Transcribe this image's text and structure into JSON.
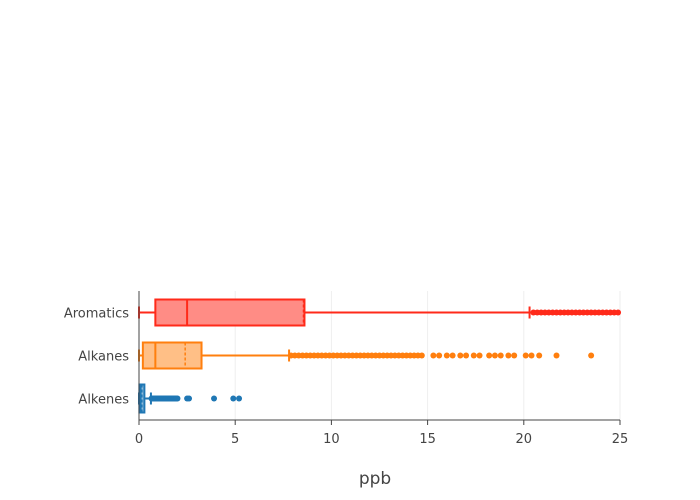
{
  "chart_data": {
    "type": "box",
    "orientation": "horizontal",
    "xlabel": "ppb",
    "ylabel": "",
    "xlim": [
      0,
      25
    ],
    "xticks": [
      0,
      5,
      10,
      15,
      20,
      25
    ],
    "grid": "vertical",
    "legend": "none",
    "series": [
      {
        "category": "Alkenes",
        "color": "#1f77b4",
        "min": 0,
        "q1": 0.02,
        "median": 0.08,
        "mean": 0.15,
        "q3": 0.28,
        "whisker_low": 0,
        "whisker_high": 0.62,
        "outliers": [
          0.65,
          0.7,
          0.75,
          0.8,
          0.85,
          0.9,
          0.95,
          1.0,
          1.05,
          1.1,
          1.15,
          1.2,
          1.25,
          1.3,
          1.35,
          1.4,
          1.45,
          1.5,
          1.55,
          1.6,
          1.65,
          1.7,
          1.75,
          1.8,
          1.85,
          1.9,
          1.95,
          2.0,
          2.5,
          2.6,
          3.9,
          4.9,
          5.2
        ]
      },
      {
        "category": "Alkanes",
        "color": "#ff7f0e",
        "min": 0,
        "q1": 0.2,
        "median": 0.85,
        "mean": 2.4,
        "q3": 3.25,
        "whisker_low": 0,
        "whisker_high": 7.8,
        "outliers": [
          7.9,
          8.1,
          8.3,
          8.5,
          8.7,
          8.9,
          9.1,
          9.3,
          9.5,
          9.7,
          9.9,
          10.1,
          10.3,
          10.5,
          10.7,
          10.9,
          11.1,
          11.3,
          11.5,
          11.7,
          11.9,
          12.1,
          12.3,
          12.5,
          12.7,
          12.9,
          13.1,
          13.3,
          13.5,
          13.7,
          13.9,
          14.1,
          14.3,
          14.5,
          14.7,
          15.3,
          15.6,
          16.0,
          16.3,
          16.7,
          17.0,
          17.4,
          17.7,
          18.2,
          18.5,
          18.8,
          19.2,
          19.5,
          20.1,
          20.4,
          20.8,
          21.7,
          23.5
        ]
      },
      {
        "category": "Aromatics",
        "color": "#ff2a1a",
        "fill": "#ff8c85",
        "min": 0,
        "q1": 0.85,
        "median": 2.5,
        "mean": 8.55,
        "q3": 8.6,
        "whisker_low": 0,
        "whisker_high": 20.3,
        "outliers": [
          20.5,
          20.7,
          20.9,
          21.1,
          21.3,
          21.5,
          21.7,
          21.9,
          22.1,
          22.3,
          22.5,
          22.7,
          22.9,
          23.1,
          23.3,
          23.5,
          23.7,
          23.9,
          24.1,
          24.3,
          24.5,
          24.7,
          24.9
        ]
      }
    ]
  }
}
